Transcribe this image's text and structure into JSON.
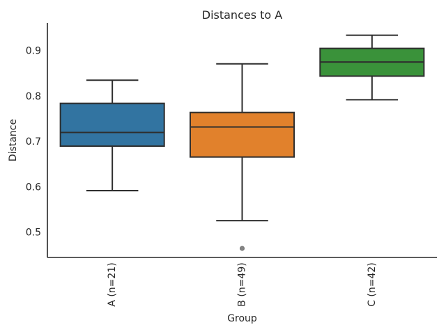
{
  "figure": {
    "background": "#ffffff"
  },
  "chart_data": {
    "type": "boxplot",
    "title": "Distances to A",
    "xlabel": "Group",
    "ylabel": "Distance",
    "categories": [
      "A (n=21)",
      "B (n=49)",
      "C (n=42)"
    ],
    "ylim": [
      0.446,
      0.962
    ],
    "yticks": [
      0.5,
      0.6,
      0.7,
      0.8,
      0.9
    ],
    "grid": false,
    "legend": null,
    "box_width_fraction": 0.8,
    "xtick_rotation": 90,
    "series": [
      {
        "name": "A (n=21)",
        "color": "#3274A1",
        "whisker_low": 0.593,
        "q1": 0.691,
        "median": 0.721,
        "q3": 0.785,
        "whisker_high": 0.836,
        "outliers": []
      },
      {
        "name": "B (n=49)",
        "color": "#E1812C",
        "whisker_low": 0.527,
        "q1": 0.667,
        "median": 0.733,
        "q3": 0.765,
        "whisker_high": 0.872,
        "outliers": [
          0.466
        ]
      },
      {
        "name": "C (n=42)",
        "color": "#3A923A",
        "whisker_low": 0.793,
        "q1": 0.845,
        "median": 0.876,
        "q3": 0.906,
        "whisker_high": 0.935,
        "outliers": []
      }
    ],
    "style": {
      "line_color": "#2e2e2e",
      "spine_color": "#262626",
      "text_color": "#262626",
      "flier_color": "#848484",
      "flier_edge_color": "#6f6f6f"
    }
  }
}
